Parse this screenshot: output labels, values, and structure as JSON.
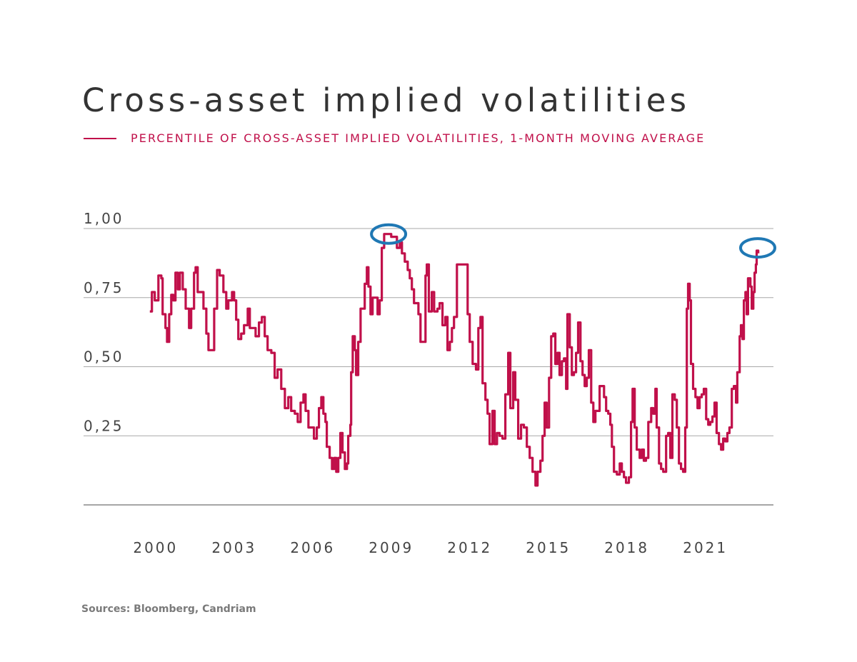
{
  "chart_data": {
    "type": "line",
    "title": "Cross-asset implied volatilities",
    "legend": "top-left",
    "series": [
      {
        "name": "PERCENTILE OF CROSS-ASSET IMPLIED VOLATILITIES, 1-MONTH MOVING AVERAGE",
        "color": "#c0104a",
        "points": [
          [
            1999.78,
            0.7
          ],
          [
            1999.86,
            0.77
          ],
          [
            1999.97,
            0.74
          ],
          [
            2000.11,
            0.83
          ],
          [
            2000.22,
            0.82
          ],
          [
            2000.27,
            0.69
          ],
          [
            2000.38,
            0.64
          ],
          [
            2000.44,
            0.59
          ],
          [
            2000.52,
            0.69
          ],
          [
            2000.6,
            0.76
          ],
          [
            2000.68,
            0.74
          ],
          [
            2000.76,
            0.84
          ],
          [
            2000.85,
            0.78
          ],
          [
            2000.93,
            0.84
          ],
          [
            2001.04,
            0.78
          ],
          [
            2001.15,
            0.71
          ],
          [
            2001.28,
            0.64
          ],
          [
            2001.36,
            0.71
          ],
          [
            2001.47,
            0.84
          ],
          [
            2001.53,
            0.86
          ],
          [
            2001.61,
            0.77
          ],
          [
            2001.72,
            0.77
          ],
          [
            2001.83,
            0.71
          ],
          [
            2001.94,
            0.62
          ],
          [
            2002.02,
            0.56
          ],
          [
            2002.15,
            0.56
          ],
          [
            2002.24,
            0.71
          ],
          [
            2002.35,
            0.85
          ],
          [
            2002.45,
            0.83
          ],
          [
            2002.59,
            0.77
          ],
          [
            2002.7,
            0.71
          ],
          [
            2002.78,
            0.74
          ],
          [
            2002.92,
            0.77
          ],
          [
            2003.0,
            0.74
          ],
          [
            2003.08,
            0.67
          ],
          [
            2003.16,
            0.6
          ],
          [
            2003.27,
            0.62
          ],
          [
            2003.38,
            0.65
          ],
          [
            2003.52,
            0.71
          ],
          [
            2003.6,
            0.64
          ],
          [
            2003.74,
            0.64
          ],
          [
            2003.82,
            0.61
          ],
          [
            2003.95,
            0.66
          ],
          [
            2004.06,
            0.68
          ],
          [
            2004.17,
            0.61
          ],
          [
            2004.28,
            0.56
          ],
          [
            2004.42,
            0.55
          ],
          [
            2004.55,
            0.46
          ],
          [
            2004.66,
            0.49
          ],
          [
            2004.8,
            0.42
          ],
          [
            2004.94,
            0.35
          ],
          [
            2005.07,
            0.39
          ],
          [
            2005.18,
            0.34
          ],
          [
            2005.32,
            0.33
          ],
          [
            2005.43,
            0.3
          ],
          [
            2005.54,
            0.37
          ],
          [
            2005.65,
            0.4
          ],
          [
            2005.73,
            0.34
          ],
          [
            2005.84,
            0.28
          ],
          [
            2005.95,
            0.28
          ],
          [
            2006.05,
            0.24
          ],
          [
            2006.16,
            0.28
          ],
          [
            2006.24,
            0.35
          ],
          [
            2006.33,
            0.39
          ],
          [
            2006.41,
            0.33
          ],
          [
            2006.49,
            0.3
          ],
          [
            2006.54,
            0.21
          ],
          [
            2006.65,
            0.17
          ],
          [
            2006.74,
            0.13
          ],
          [
            2006.82,
            0.17
          ],
          [
            2006.9,
            0.12
          ],
          [
            2006.98,
            0.17
          ],
          [
            2007.06,
            0.26
          ],
          [
            2007.14,
            0.19
          ],
          [
            2007.23,
            0.13
          ],
          [
            2007.31,
            0.15
          ],
          [
            2007.36,
            0.25
          ],
          [
            2007.44,
            0.29
          ],
          [
            2007.47,
            0.48
          ],
          [
            2007.53,
            0.61
          ],
          [
            2007.61,
            0.56
          ],
          [
            2007.66,
            0.47
          ],
          [
            2007.74,
            0.59
          ],
          [
            2007.83,
            0.71
          ],
          [
            2007.91,
            0.71
          ],
          [
            2007.99,
            0.8
          ],
          [
            2008.07,
            0.86
          ],
          [
            2008.13,
            0.79
          ],
          [
            2008.21,
            0.69
          ],
          [
            2008.29,
            0.75
          ],
          [
            2008.4,
            0.75
          ],
          [
            2008.48,
            0.69
          ],
          [
            2008.56,
            0.74
          ],
          [
            2008.64,
            0.93
          ],
          [
            2008.73,
            0.98
          ],
          [
            2008.86,
            0.98
          ],
          [
            2009.0,
            0.97
          ],
          [
            2009.11,
            0.97
          ],
          [
            2009.22,
            0.93
          ],
          [
            2009.33,
            0.95
          ],
          [
            2009.41,
            0.91
          ],
          [
            2009.52,
            0.88
          ],
          [
            2009.63,
            0.85
          ],
          [
            2009.71,
            0.82
          ],
          [
            2009.79,
            0.78
          ],
          [
            2009.87,
            0.73
          ],
          [
            2009.98,
            0.73
          ],
          [
            2010.04,
            0.69
          ],
          [
            2010.12,
            0.59
          ],
          [
            2010.23,
            0.59
          ],
          [
            2010.31,
            0.83
          ],
          [
            2010.36,
            0.87
          ],
          [
            2010.44,
            0.7
          ],
          [
            2010.55,
            0.77
          ],
          [
            2010.64,
            0.7
          ],
          [
            2010.77,
            0.71
          ],
          [
            2010.85,
            0.73
          ],
          [
            2010.96,
            0.65
          ],
          [
            2011.07,
            0.68
          ],
          [
            2011.15,
            0.56
          ],
          [
            2011.24,
            0.59
          ],
          [
            2011.32,
            0.64
          ],
          [
            2011.4,
            0.68
          ],
          [
            2011.51,
            0.87
          ],
          [
            2011.64,
            0.87
          ],
          [
            2011.78,
            0.87
          ],
          [
            2011.92,
            0.69
          ],
          [
            2012.0,
            0.59
          ],
          [
            2012.11,
            0.51
          ],
          [
            2012.24,
            0.49
          ],
          [
            2012.33,
            0.64
          ],
          [
            2012.41,
            0.68
          ],
          [
            2012.49,
            0.44
          ],
          [
            2012.6,
            0.38
          ],
          [
            2012.68,
            0.33
          ],
          [
            2012.76,
            0.22
          ],
          [
            2012.87,
            0.34
          ],
          [
            2012.95,
            0.22
          ],
          [
            2013.04,
            0.26
          ],
          [
            2013.14,
            0.25
          ],
          [
            2013.25,
            0.24
          ],
          [
            2013.36,
            0.4
          ],
          [
            2013.47,
            0.55
          ],
          [
            2013.55,
            0.35
          ],
          [
            2013.66,
            0.48
          ],
          [
            2013.74,
            0.38
          ],
          [
            2013.85,
            0.24
          ],
          [
            2013.96,
            0.29
          ],
          [
            2014.07,
            0.28
          ],
          [
            2014.18,
            0.21
          ],
          [
            2014.29,
            0.17
          ],
          [
            2014.4,
            0.12
          ],
          [
            2014.51,
            0.07
          ],
          [
            2014.59,
            0.12
          ],
          [
            2014.7,
            0.16
          ],
          [
            2014.78,
            0.25
          ],
          [
            2014.86,
            0.37
          ],
          [
            2014.94,
            0.28
          ],
          [
            2015.03,
            0.46
          ],
          [
            2015.11,
            0.61
          ],
          [
            2015.19,
            0.62
          ],
          [
            2015.27,
            0.51
          ],
          [
            2015.35,
            0.55
          ],
          [
            2015.43,
            0.47
          ],
          [
            2015.52,
            0.52
          ],
          [
            2015.6,
            0.53
          ],
          [
            2015.68,
            0.42
          ],
          [
            2015.73,
            0.69
          ],
          [
            2015.82,
            0.57
          ],
          [
            2015.9,
            0.47
          ],
          [
            2015.98,
            0.48
          ],
          [
            2016.06,
            0.55
          ],
          [
            2016.14,
            0.66
          ],
          [
            2016.23,
            0.52
          ],
          [
            2016.31,
            0.47
          ],
          [
            2016.39,
            0.43
          ],
          [
            2016.47,
            0.46
          ],
          [
            2016.55,
            0.56
          ],
          [
            2016.64,
            0.37
          ],
          [
            2016.72,
            0.3
          ],
          [
            2016.8,
            0.34
          ],
          [
            2016.88,
            0.34
          ],
          [
            2016.96,
            0.43
          ],
          [
            2017.04,
            0.43
          ],
          [
            2017.13,
            0.39
          ],
          [
            2017.21,
            0.34
          ],
          [
            2017.29,
            0.33
          ],
          [
            2017.37,
            0.29
          ],
          [
            2017.43,
            0.21
          ],
          [
            2017.51,
            0.12
          ],
          [
            2017.62,
            0.11
          ],
          [
            2017.73,
            0.15
          ],
          [
            2017.81,
            0.12
          ],
          [
            2017.89,
            0.1
          ],
          [
            2017.97,
            0.08
          ],
          [
            2018.08,
            0.1
          ],
          [
            2018.16,
            0.3
          ],
          [
            2018.22,
            0.42
          ],
          [
            2018.3,
            0.28
          ],
          [
            2018.38,
            0.2
          ],
          [
            2018.49,
            0.17
          ],
          [
            2018.57,
            0.2
          ],
          [
            2018.65,
            0.16
          ],
          [
            2018.73,
            0.17
          ],
          [
            2018.82,
            0.3
          ],
          [
            2018.93,
            0.35
          ],
          [
            2019.01,
            0.33
          ],
          [
            2019.09,
            0.42
          ],
          [
            2019.14,
            0.28
          ],
          [
            2019.23,
            0.15
          ],
          [
            2019.31,
            0.13
          ],
          [
            2019.39,
            0.12
          ],
          [
            2019.5,
            0.25
          ],
          [
            2019.58,
            0.26
          ],
          [
            2019.66,
            0.17
          ],
          [
            2019.74,
            0.4
          ],
          [
            2019.83,
            0.38
          ],
          [
            2019.91,
            0.28
          ],
          [
            2019.99,
            0.15
          ],
          [
            2020.07,
            0.13
          ],
          [
            2020.15,
            0.12
          ],
          [
            2020.23,
            0.28
          ],
          [
            2020.29,
            0.71
          ],
          [
            2020.34,
            0.8
          ],
          [
            2020.4,
            0.74
          ],
          [
            2020.45,
            0.51
          ],
          [
            2020.53,
            0.42
          ],
          [
            2020.62,
            0.39
          ],
          [
            2020.7,
            0.35
          ],
          [
            2020.78,
            0.39
          ],
          [
            2020.86,
            0.4
          ],
          [
            2020.94,
            0.42
          ],
          [
            2021.03,
            0.31
          ],
          [
            2021.11,
            0.29
          ],
          [
            2021.19,
            0.3
          ],
          [
            2021.27,
            0.32
          ],
          [
            2021.35,
            0.37
          ],
          [
            2021.43,
            0.26
          ],
          [
            2021.52,
            0.22
          ],
          [
            2021.6,
            0.2
          ],
          [
            2021.68,
            0.24
          ],
          [
            2021.76,
            0.23
          ],
          [
            2021.84,
            0.26
          ],
          [
            2021.92,
            0.28
          ],
          [
            2022.01,
            0.42
          ],
          [
            2022.09,
            0.43
          ],
          [
            2022.17,
            0.37
          ],
          [
            2022.22,
            0.48
          ],
          [
            2022.31,
            0.61
          ],
          [
            2022.36,
            0.65
          ],
          [
            2022.42,
            0.6
          ],
          [
            2022.47,
            0.74
          ],
          [
            2022.53,
            0.77
          ],
          [
            2022.58,
            0.69
          ],
          [
            2022.63,
            0.82
          ],
          [
            2022.72,
            0.79
          ],
          [
            2022.77,
            0.71
          ],
          [
            2022.83,
            0.77
          ],
          [
            2022.88,
            0.84
          ],
          [
            2022.93,
            0.87
          ],
          [
            2022.96,
            0.92
          ],
          [
            2023.02,
            0.91
          ]
        ]
      }
    ],
    "xlim": [
      1997.25,
      2023.6
    ],
    "ylim": [
      0,
      1
    ],
    "x_ticks": [
      2000,
      2003,
      2006,
      2009,
      2012,
      2015,
      2018,
      2021
    ],
    "x_tick_labels": [
      "2000",
      "2003",
      "2006",
      "2009",
      "2012",
      "2015",
      "2018",
      "2021"
    ],
    "y_ticks": [
      0.25,
      0.5,
      0.75,
      1.0
    ],
    "y_tick_labels": [
      "0,25",
      "0,50",
      "0,75",
      "1,00"
    ],
    "grid": "horizontal",
    "annotations": [
      {
        "type": "ellipse",
        "x": 2008.9,
        "y": 0.98,
        "color": "#1f78b4"
      },
      {
        "type": "ellipse",
        "x": 2023.0,
        "y": 0.93,
        "color": "#1f78b4"
      }
    ]
  },
  "source": "Sources: Bloomberg, Candriam"
}
